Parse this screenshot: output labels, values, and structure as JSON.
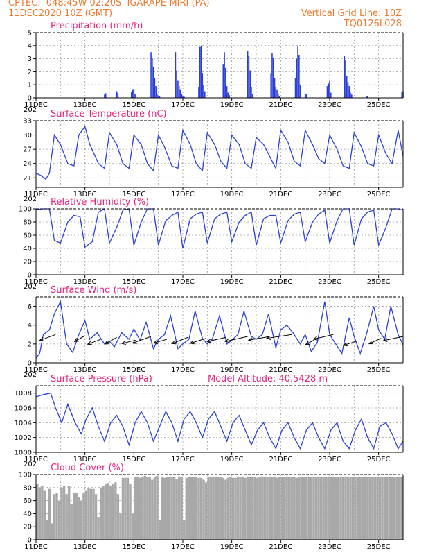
{
  "header": {
    "line1_left": "CPTEC:  048:45W-02:20S  IGARAPE-MIRI (PA)",
    "line2_left": "11DEC2020 10Z (GMT)",
    "line2_right": "Vertical Grid Line: 10Z",
    "line3_right": "TQ0126L028"
  },
  "colors": {
    "header": "#f0782d",
    "title": "#e6207d",
    "line": "#2a3fd8",
    "cloud": "#a8a8a8"
  },
  "chart_data": [
    {
      "type": "bar",
      "title": "Precipitation (mm/h)",
      "ylim": [
        0,
        5
      ],
      "yticks": [
        0,
        1,
        2,
        3,
        4,
        5
      ],
      "xlim": [
        11,
        26
      ],
      "xticks": [
        "11DEC",
        "13DEC",
        "15DEC",
        "17DEC",
        "19DEC",
        "21DEC",
        "23DEC",
        "25DEC"
      ],
      "year_stub": "202",
      "x": [
        13.8,
        13.85,
        14.3,
        14.35,
        14.9,
        14.95,
        15.0,
        15.05,
        15.7,
        15.75,
        15.8,
        15.85,
        15.9,
        15.95,
        16.0,
        16.05,
        16.7,
        16.75,
        16.8,
        16.85,
        16.9,
        16.95,
        17.0,
        17.05,
        17.65,
        17.7,
        17.75,
        17.8,
        17.85,
        17.9,
        18.65,
        18.7,
        18.75,
        18.8,
        18.85,
        18.9,
        19.65,
        19.7,
        19.75,
        19.8,
        19.85,
        20.6,
        20.65,
        20.7,
        20.75,
        20.8,
        20.85,
        20.9,
        20.95,
        21.6,
        21.65,
        21.7,
        21.75,
        21.8,
        22.0,
        22.05,
        22.9,
        22.95,
        23.0,
        23.05,
        23.6,
        23.65,
        23.7,
        23.75,
        23.8,
        23.85,
        23.9,
        24.5,
        24.55,
        25.95,
        26.0
      ],
      "values": [
        0.25,
        0.35,
        0.5,
        0.35,
        0.45,
        0.6,
        0.65,
        0.3,
        3.5,
        3.1,
        2.4,
        1.5,
        0.9,
        0.3,
        0.1,
        0.15,
        3.5,
        2.1,
        1.3,
        0.9,
        0.6,
        0.3,
        0.15,
        0.1,
        0.8,
        3.9,
        4.0,
        1.9,
        1.0,
        0.5,
        2.6,
        3.5,
        2.3,
        0.9,
        0.4,
        0.2,
        3.6,
        3.2,
        2.1,
        0.8,
        0.3,
        1.9,
        3.4,
        3.1,
        1.5,
        0.8,
        0.6,
        0.3,
        0.15,
        1.5,
        3.0,
        4.0,
        3.3,
        1.0,
        0.3,
        0.3,
        0.9,
        1.1,
        1.3,
        0.4,
        3.2,
        2.9,
        1.7,
        1.2,
        0.9,
        0.4,
        0.25,
        0.15,
        0.12,
        0.45,
        0.5
      ]
    },
    {
      "type": "line",
      "title": "Surface Temperature (nC)",
      "ylim": [
        19,
        33
      ],
      "yticks": [
        21,
        24,
        27,
        30,
        33
      ],
      "xlim": [
        11,
        26
      ],
      "xticks": [
        "11DEC",
        "13DEC",
        "15DEC",
        "17DEC",
        "19DEC",
        "21DEC",
        "23DEC",
        "25DEC"
      ],
      "year_stub": "202",
      "x": [
        11,
        11.2,
        11.4,
        11.55,
        11.75,
        12.0,
        12.3,
        12.55,
        12.75,
        13.0,
        13.2,
        13.55,
        13.8,
        14.0,
        14.3,
        14.55,
        14.8,
        15.0,
        15.3,
        15.55,
        15.8,
        16.0,
        16.25,
        16.55,
        16.8,
        17.0,
        17.3,
        17.55,
        17.8,
        18.0,
        18.3,
        18.55,
        18.8,
        19.0,
        19.3,
        19.55,
        19.8,
        20.0,
        20.3,
        20.55,
        20.8,
        21.0,
        21.3,
        21.55,
        21.8,
        22.0,
        22.3,
        22.55,
        22.8,
        23.0,
        23.3,
        23.55,
        23.8,
        24.0,
        24.3,
        24.55,
        24.8,
        25.0,
        25.3,
        25.55,
        25.8,
        26.0
      ],
      "values": [
        22,
        21.5,
        20.7,
        22,
        30,
        28,
        24,
        23.5,
        30,
        31.8,
        28,
        24,
        23,
        30.5,
        28,
        24,
        23,
        30,
        28,
        24,
        22.5,
        30,
        27.5,
        23.5,
        23,
        31,
        28,
        24,
        22.5,
        30.5,
        28,
        24.5,
        23,
        30,
        28,
        24,
        23,
        29.5,
        28,
        25.5,
        23,
        31,
        28.5,
        24.5,
        23.5,
        31,
        28,
        25,
        24,
        30,
        27,
        23.5,
        23,
        30.5,
        27.5,
        24,
        23.5,
        30,
        26,
        24,
        31,
        25.5
      ]
    },
    {
      "type": "line",
      "title": "Relative Humidity (%)",
      "ylim": [
        0,
        100
      ],
      "yticks": [
        0,
        20,
        40,
        60,
        80,
        100
      ],
      "xlim": [
        11,
        26
      ],
      "xticks": [
        "11DEC",
        "13DEC",
        "15DEC",
        "17DEC",
        "19DEC",
        "21DEC",
        "23DEC",
        "25DEC"
      ],
      "year_stub": "202",
      "x": [
        11,
        11.3,
        11.55,
        11.75,
        12.0,
        12.3,
        12.55,
        12.8,
        13.0,
        13.3,
        13.55,
        13.8,
        14.0,
        14.3,
        14.55,
        14.8,
        15.0,
        15.3,
        15.55,
        15.8,
        16.0,
        16.3,
        16.55,
        16.8,
        17.0,
        17.3,
        17.55,
        17.8,
        18.0,
        18.3,
        18.55,
        18.8,
        19.0,
        19.3,
        19.55,
        19.8,
        20.0,
        20.3,
        20.55,
        20.8,
        21.0,
        21.3,
        21.55,
        21.8,
        22.0,
        22.3,
        22.55,
        22.8,
        23.0,
        23.3,
        23.55,
        23.8,
        24.0,
        24.3,
        24.55,
        24.8,
        25.0,
        25.3,
        25.55,
        25.8,
        26.0
      ],
      "values": [
        99,
        100,
        100,
        52,
        48,
        80,
        90,
        88,
        42,
        50,
        95,
        100,
        48,
        72,
        98,
        100,
        45,
        80,
        100,
        100,
        45,
        82,
        90,
        95,
        40,
        85,
        92,
        95,
        48,
        85,
        92,
        95,
        50,
        80,
        90,
        95,
        45,
        85,
        90,
        90,
        48,
        82,
        92,
        95,
        50,
        80,
        92,
        98,
        48,
        82,
        100,
        100,
        45,
        85,
        95,
        98,
        45,
        72,
        100,
        100,
        98
      ]
    },
    {
      "type": "line",
      "title": "Surface Wind (m/s)",
      "ylim": [
        0,
        7
      ],
      "yticks": [
        0,
        2,
        4,
        6
      ],
      "xlim": [
        11,
        26
      ],
      "xticks": [
        "11DEC",
        "13DEC",
        "15DEC",
        "17DEC",
        "19DEC",
        "21DEC",
        "23DEC",
        "25DEC"
      ],
      "year_stub": "202",
      "x": [
        11,
        11.15,
        11.3,
        11.55,
        11.75,
        12.0,
        12.25,
        12.5,
        12.75,
        13.0,
        13.2,
        13.5,
        13.8,
        14.0,
        14.2,
        14.5,
        14.8,
        15.0,
        15.25,
        15.5,
        15.8,
        16.0,
        16.25,
        16.5,
        16.8,
        17.0,
        17.25,
        17.5,
        17.8,
        18.0,
        18.2,
        18.5,
        18.8,
        19.0,
        19.25,
        19.5,
        19.8,
        20.0,
        20.25,
        20.5,
        20.8,
        21.0,
        21.25,
        21.5,
        21.8,
        22.0,
        22.25,
        22.5,
        22.8,
        23.0,
        23.25,
        23.5,
        23.8,
        24.0,
        24.25,
        24.5,
        24.8,
        25.0,
        25.25,
        25.5,
        25.8,
        26.0
      ],
      "values": [
        0.5,
        1.0,
        3.0,
        3.5,
        5.2,
        6.5,
        2.0,
        1.1,
        3.0,
        4.5,
        2.5,
        3.2,
        2.0,
        2.3,
        1.7,
        3.2,
        2.5,
        3.6,
        2.4,
        4.3,
        1.5,
        2.5,
        3.0,
        5.0,
        1.5,
        2.0,
        2.5,
        5.5,
        2.6,
        2.0,
        2.5,
        5.0,
        2.0,
        2.4,
        3.0,
        5.5,
        2.8,
        2.5,
        3.0,
        5.2,
        1.6,
        3.5,
        4.0,
        3.2,
        2.0,
        3.0,
        1.2,
        2.2,
        6.5,
        3.0,
        2.0,
        1.0,
        4.8,
        2.8,
        1.0,
        3.0,
        6.0,
        3.5,
        2.5,
        6.0,
        3.0,
        1.9
      ],
      "vectors": [
        {
          "x": 11.8,
          "y": 3.0,
          "dx": -0.6,
          "dy": -0.7
        },
        {
          "x": 12.95,
          "y": 2.8,
          "dx": -0.35,
          "dy": -0.6
        },
        {
          "x": 13.65,
          "y": 2.5,
          "dx": -0.5,
          "dy": -0.6
        },
        {
          "x": 14.3,
          "y": 2.7,
          "dx": -0.45,
          "dy": -0.8
        },
        {
          "x": 15.05,
          "y": 2.4,
          "dx": -0.5,
          "dy": -0.4
        },
        {
          "x": 15.7,
          "y": 2.8,
          "dx": -0.7,
          "dy": -0.8
        },
        {
          "x": 16.35,
          "y": 2.5,
          "dx": -0.5,
          "dy": -0.45
        },
        {
          "x": 17.2,
          "y": 2.7,
          "dx": -0.6,
          "dy": -0.75
        },
        {
          "x": 17.95,
          "y": 2.6,
          "dx": -0.6,
          "dy": -0.6
        },
        {
          "x": 18.75,
          "y": 2.7,
          "dx": -0.7,
          "dy": -0.5
        },
        {
          "x": 19.65,
          "y": 2.8,
          "dx": -0.85,
          "dy": -0.6
        },
        {
          "x": 20.55,
          "y": 2.8,
          "dx": -0.8,
          "dy": -0.45
        },
        {
          "x": 21.45,
          "y": 3.0,
          "dx": -0.95,
          "dy": -0.45
        },
        {
          "x": 22.35,
          "y": 2.4,
          "dx": -0.3,
          "dy": -0.5
        },
        {
          "x": 23.15,
          "y": 3.0,
          "dx": -0.75,
          "dy": -0.55
        },
        {
          "x": 24.1,
          "y": 2.3,
          "dx": -0.5,
          "dy": -0.5
        },
        {
          "x": 25.1,
          "y": 2.6,
          "dx": -0.45,
          "dy": -0.65
        },
        {
          "x": 26.0,
          "y": 2.8,
          "dx": -0.75,
          "dy": -0.5
        }
      ]
    },
    {
      "type": "line",
      "title": "Surface Pressure (hPa)",
      "subtitle": "Model Altitude: 40.5428 m",
      "ylim": [
        1000,
        1009
      ],
      "yticks": [
        1000,
        1002,
        1004,
        1006,
        1008
      ],
      "xlim": [
        11,
        26
      ],
      "xticks": [
        "11DEC",
        "13DEC",
        "15DEC",
        "17DEC",
        "19DEC",
        "21DEC",
        "23DEC",
        "25DEC"
      ],
      "year_stub": "202",
      "x": [
        11,
        11.3,
        11.6,
        11.8,
        12.05,
        12.3,
        12.6,
        12.85,
        13.05,
        13.3,
        13.55,
        13.8,
        14.05,
        14.3,
        14.55,
        14.8,
        15.05,
        15.3,
        15.55,
        15.8,
        16.05,
        16.3,
        16.55,
        16.8,
        17.05,
        17.3,
        17.55,
        17.8,
        18.05,
        18.3,
        18.55,
        18.8,
        19.05,
        19.3,
        19.55,
        19.8,
        20.05,
        20.3,
        20.55,
        20.8,
        21.05,
        21.3,
        21.55,
        21.8,
        22.05,
        22.3,
        22.55,
        22.8,
        23.05,
        23.3,
        23.55,
        23.8,
        24.05,
        24.3,
        24.55,
        24.8,
        25.05,
        25.3,
        25.55,
        25.8,
        26.0
      ],
      "values": [
        1007.5,
        1007.8,
        1008.0,
        1006.0,
        1004.0,
        1006.5,
        1004.0,
        1002.5,
        1004.5,
        1006.0,
        1003.5,
        1001.5,
        1004.0,
        1005.0,
        1003.5,
        1001.0,
        1004.0,
        1005.5,
        1004.0,
        1001.5,
        1003.5,
        1005.5,
        1004.0,
        1001.5,
        1004.5,
        1005.5,
        1004.0,
        1002.0,
        1004.5,
        1005.5,
        1003.5,
        1001.5,
        1004.0,
        1005.0,
        1003.0,
        1001.0,
        1003.0,
        1004.0,
        1002.0,
        1000.5,
        1003.0,
        1004.0,
        1002.0,
        1000.5,
        1003.0,
        1004.0,
        1002.0,
        1000.5,
        1003.0,
        1004.0,
        1001.5,
        1000.5,
        1003.0,
        1004.5,
        1002.0,
        1000.5,
        1003.5,
        1004.0,
        1002.5,
        1000.5,
        1001.5
      ]
    },
    {
      "type": "bar",
      "title": "Cloud Cover (%)",
      "ylim": [
        0,
        100
      ],
      "yticks": [
        0,
        20,
        40,
        60,
        80,
        100
      ],
      "xlim": [
        11,
        26
      ],
      "xticks": [
        "11DEC",
        "13DEC",
        "15DEC",
        "17DEC",
        "19DEC",
        "21DEC",
        "23DEC",
        "25DEC"
      ],
      "x": [
        11.05,
        11.15,
        11.25,
        11.35,
        11.45,
        11.55,
        11.65,
        11.75,
        11.85,
        11.95,
        12.05,
        12.15,
        12.25,
        12.35,
        12.45,
        12.55,
        12.65,
        12.75,
        12.85,
        12.95,
        13.05,
        13.15,
        13.25,
        13.35,
        13.45,
        13.55,
        13.65,
        13.75,
        13.85,
        13.95,
        14.05,
        14.15,
        14.25,
        14.35,
        14.45,
        14.55,
        14.65,
        14.75,
        14.85,
        14.95,
        15.05,
        15.15,
        15.25,
        15.35,
        15.45,
        15.55,
        15.65,
        15.75,
        15.85,
        15.95,
        16.05,
        16.15,
        16.25,
        16.35,
        16.45,
        16.55,
        16.65,
        16.75,
        16.85,
        16.95,
        17.05,
        17.15,
        17.25,
        17.35,
        17.45,
        17.55,
        17.65,
        17.75,
        17.85,
        17.95,
        18.05,
        18.15,
        18.25,
        18.35,
        18.45,
        18.55,
        18.65,
        18.75,
        18.85,
        18.95,
        19.05,
        19.15,
        19.25,
        19.35,
        19.45,
        19.55,
        19.65,
        19.75,
        19.85,
        19.95,
        20.05,
        20.15,
        20.25,
        20.35,
        20.45,
        20.55,
        20.65,
        20.75,
        20.85,
        20.95,
        21.05,
        21.15,
        21.25,
        21.35,
        21.45,
        21.55,
        21.65,
        21.75,
        21.85,
        21.95,
        22.05,
        22.15,
        22.25,
        22.35,
        22.45,
        22.55,
        22.65,
        22.75,
        22.85,
        22.95,
        23.05,
        23.15,
        23.25,
        23.35,
        23.45,
        23.55,
        23.65,
        23.75,
        23.85,
        23.95,
        24.05,
        24.15,
        24.25,
        24.35,
        24.45,
        24.55,
        24.65,
        24.75,
        24.85,
        24.95,
        25.05,
        25.15,
        25.25,
        25.35,
        25.45,
        25.55,
        25.65,
        25.75,
        25.85,
        25.95
      ],
      "values": [
        85,
        80,
        82,
        75,
        30,
        78,
        25,
        70,
        72,
        60,
        80,
        83,
        70,
        82,
        55,
        72,
        72,
        65,
        60,
        72,
        75,
        80,
        78,
        78,
        70,
        35,
        80,
        82,
        85,
        87,
        82,
        85,
        88,
        70,
        40,
        95,
        95,
        95,
        85,
        40,
        96,
        97,
        95,
        96,
        98,
        96,
        96,
        92,
        97,
        98,
        30,
        96,
        95,
        96,
        96,
        97,
        96,
        93,
        97,
        97,
        30,
        95,
        97,
        96,
        96,
        96,
        95,
        95,
        92,
        88,
        97,
        96,
        97,
        97,
        96,
        96,
        95,
        92,
        95,
        97,
        95,
        95,
        96,
        96,
        97,
        95,
        97,
        96,
        97,
        96,
        95,
        96,
        97,
        97,
        96,
        97,
        96,
        97,
        95,
        96,
        96,
        96,
        97,
        96,
        96,
        97,
        95,
        96,
        97,
        96,
        97,
        97,
        96,
        97,
        96,
        97,
        96,
        97,
        96,
        97,
        96,
        97,
        96,
        96,
        97,
        96,
        97,
        96,
        96,
        97,
        96,
        97,
        96,
        97,
        97,
        96,
        96,
        97,
        96,
        97,
        96,
        97,
        96,
        97,
        96,
        97,
        96,
        96,
        97,
        96
      ]
    }
  ]
}
